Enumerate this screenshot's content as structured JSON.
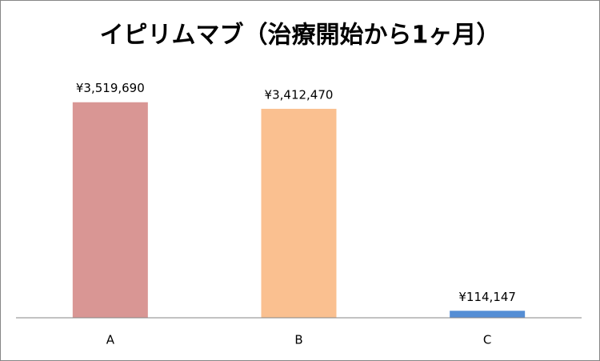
{
  "chart_data": {
    "type": "bar",
    "title": "イピリムマブ（治療開始から1ヶ月）",
    "categories": [
      "A",
      "B",
      "C"
    ],
    "values": [
      3519690,
      3412470,
      114147
    ],
    "value_labels": [
      "¥3,519,690",
      "¥3,412,470",
      "¥114,147"
    ],
    "colors": [
      "#d99694",
      "#fac090",
      "#558ed5"
    ],
    "ylim": [
      0,
      4000000
    ]
  }
}
